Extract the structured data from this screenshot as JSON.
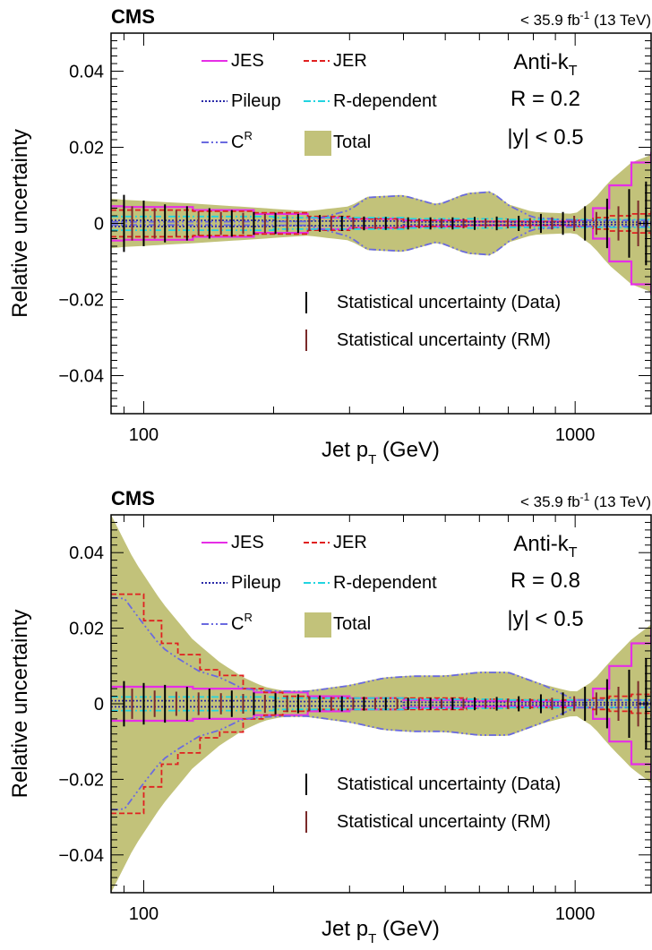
{
  "chart_data": [
    {
      "type": "line",
      "experiment": "CMS",
      "luminosity": "< 35.9 fb⁻¹ (13 TeV)",
      "lumi_parts": {
        "prefix": "< 35.9 fb",
        "sup": "-1",
        "suffix": " (13 TeV)"
      },
      "xlabel": "Jet p",
      "xlabel_sub": "T",
      "xlabel_suffix": " (GeV)",
      "ylabel": "Relative uncertainty",
      "xscale": "log",
      "xlim": [
        84,
        1500
      ],
      "ylim": [
        -0.05,
        0.05
      ],
      "xticks": [
        "100",
        "1000"
      ],
      "yticks": [
        "0.04",
        "0.02",
        "0",
        "−0.02",
        "−0.04"
      ],
      "info": {
        "algo": "Anti-k",
        "algo_sub": "T",
        "radius": "R = 0.2",
        "rapidity": "|y| < 0.5"
      },
      "legend": [
        {
          "label": "JES",
          "color": "#e62ee6",
          "style": "solid"
        },
        {
          "label": "JER",
          "color": "#e02020",
          "style": "dashed"
        },
        {
          "label": "Pileup",
          "color": "#2a2aa8",
          "style": "dotted"
        },
        {
          "label": "R-dependent",
          "color": "#22d4e0",
          "style": "dashdot"
        },
        {
          "label": "C",
          "sup": "R",
          "color": "#6a6ae0",
          "style": "dashdotdot"
        },
        {
          "label": "Total",
          "color": "#c2c27a",
          "style": "fill"
        }
      ],
      "stat_legend": [
        {
          "label": "Statistical uncertainty (Data)",
          "color": "#000000"
        },
        {
          "label": "Statistical uncertainty (RM)",
          "color": "#7a2a2a"
        }
      ],
      "envelopes": [
        {
          "name": "Total",
          "x": [
            84,
            90,
            130,
            180,
            240,
            300,
            330,
            400,
            480,
            560,
            640,
            700,
            800,
            1000,
            1100,
            1200,
            1350,
            1500
          ],
          "y": [
            0.0065,
            0.0062,
            0.0052,
            0.0042,
            0.0032,
            0.0045,
            0.007,
            0.0075,
            0.005,
            0.008,
            0.0085,
            0.005,
            0.003,
            0.0025,
            0.006,
            0.011,
            0.016,
            0.018
          ]
        },
        {
          "name": "JES",
          "x": [
            84,
            90,
            130,
            180,
            240,
            300,
            400,
            560,
            700,
            800,
            1000,
            1100,
            1200,
            1350,
            1500
          ],
          "y": [
            0.0045,
            0.0043,
            0.0035,
            0.0025,
            0.0015,
            0.0012,
            0.0008,
            0.0005,
            0.0005,
            0.0005,
            0.0008,
            0.004,
            0.01,
            0.016,
            0.0185
          ]
        },
        {
          "name": "JER",
          "x": [
            84,
            130,
            180,
            240,
            300,
            400,
            560,
            700,
            800,
            1000,
            1100,
            1200,
            1350,
            1500
          ],
          "y": [
            0.0035,
            0.0032,
            0.0028,
            0.0018,
            0.0012,
            0.0008,
            0.0005,
            0.0005,
            0.0005,
            0.0008,
            0.0015,
            0.002,
            0.0025,
            0.003
          ]
        },
        {
          "name": "R-dependent",
          "x": [
            84,
            200,
            400,
            700,
            1000,
            1500
          ],
          "y": [
            0.0018,
            0.0015,
            0.0012,
            0.001,
            0.001,
            0.001
          ]
        },
        {
          "name": "Pileup",
          "x": [
            84,
            200,
            400,
            700,
            1000,
            1500
          ],
          "y": [
            0.0008,
            0.0006,
            0.0004,
            0.0003,
            0.0003,
            0.0003
          ]
        },
        {
          "name": "C^R",
          "x": [
            84,
            240,
            300,
            330,
            400,
            480,
            560,
            640,
            700,
            800,
            1000,
            1500
          ],
          "y": [
            0.0004,
            0.0005,
            0.0035,
            0.0068,
            0.0073,
            0.0048,
            0.0078,
            0.0083,
            0.0048,
            0.0015,
            0.0008,
            0.0008
          ]
        }
      ],
      "stat_errors": {
        "data": {
          "x": [
            90,
            100,
            112,
            126,
            142,
            160,
            180,
            202,
            228,
            256,
            288,
            324,
            364,
            410,
            462,
            520,
            585,
            658,
            740,
            833,
            937,
            1054,
            1186,
            1334,
            1460
          ],
          "y": [
            0.0075,
            0.006,
            0.005,
            0.0045,
            0.004,
            0.0035,
            0.003,
            0.0028,
            0.0025,
            0.0022,
            0.002,
            0.0018,
            0.0017,
            0.0016,
            0.0016,
            0.0016,
            0.0017,
            0.0018,
            0.002,
            0.0025,
            0.003,
            0.0045,
            0.0065,
            0.009,
            0.011
          ]
        },
        "rm": {
          "x": [
            94,
            106,
            119,
            134,
            151,
            170,
            191,
            215,
            242,
            272,
            306,
            344,
            387,
            435,
            490,
            551,
            620,
            698,
            786,
            884,
            995,
            1120,
            1260,
            1400
          ],
          "y": [
            0.0045,
            0.004,
            0.0035,
            0.0032,
            0.003,
            0.0028,
            0.0025,
            0.0022,
            0.002,
            0.0018,
            0.0016,
            0.0015,
            0.0014,
            0.0013,
            0.0013,
            0.0013,
            0.0013,
            0.0013,
            0.0014,
            0.0016,
            0.002,
            0.003,
            0.0045,
            0.006
          ]
        }
      }
    },
    {
      "type": "line",
      "experiment": "CMS",
      "luminosity": "< 35.9 fb⁻¹ (13 TeV)",
      "lumi_parts": {
        "prefix": "< 35.9 fb",
        "sup": "-1",
        "suffix": " (13 TeV)"
      },
      "xlabel": "Jet p",
      "xlabel_sub": "T",
      "xlabel_suffix": " (GeV)",
      "ylabel": "Relative uncertainty",
      "xscale": "log",
      "xlim": [
        84,
        1500
      ],
      "ylim": [
        -0.05,
        0.05
      ],
      "xticks": [
        "100",
        "1000"
      ],
      "yticks": [
        "0.04",
        "0.02",
        "0",
        "−0.02",
        "−0.04"
      ],
      "info": {
        "algo": "Anti-k",
        "algo_sub": "T",
        "radius": "R = 0.8",
        "rapidity": "|y| < 0.5"
      },
      "legend": [
        {
          "label": "JES",
          "color": "#e62ee6",
          "style": "solid"
        },
        {
          "label": "JER",
          "color": "#e02020",
          "style": "dashed"
        },
        {
          "label": "Pileup",
          "color": "#2a2aa8",
          "style": "dotted"
        },
        {
          "label": "R-dependent",
          "color": "#22d4e0",
          "style": "dashdot"
        },
        {
          "label": "C",
          "sup": "R",
          "color": "#6a6ae0",
          "style": "dashdotdot"
        },
        {
          "label": "Total",
          "color": "#c2c27a",
          "style": "fill"
        }
      ],
      "stat_legend": [
        {
          "label": "Statistical uncertainty (Data)",
          "color": "#000000"
        },
        {
          "label": "Statistical uncertainty (RM)",
          "color": "#7a2a2a"
        }
      ],
      "envelopes": [
        {
          "name": "Total",
          "x": [
            84,
            95,
            110,
            130,
            150,
            170,
            190,
            210,
            240,
            300,
            360,
            420,
            500,
            600,
            700,
            850,
            1000,
            1100,
            1200,
            1350,
            1500
          ],
          "y": [
            0.05,
            0.038,
            0.027,
            0.017,
            0.011,
            0.007,
            0.0045,
            0.0035,
            0.0035,
            0.005,
            0.007,
            0.0075,
            0.0075,
            0.0085,
            0.0085,
            0.005,
            0.003,
            0.006,
            0.011,
            0.017,
            0.021
          ]
        },
        {
          "name": "JES",
          "x": [
            84,
            130,
            180,
            240,
            300,
            400,
            560,
            700,
            800,
            1000,
            1100,
            1200,
            1350,
            1500
          ],
          "y": [
            0.0045,
            0.004,
            0.003,
            0.002,
            0.0015,
            0.001,
            0.0007,
            0.0007,
            0.0007,
            0.001,
            0.004,
            0.01,
            0.016,
            0.0195
          ]
        },
        {
          "name": "JER",
          "x": [
            84,
            90,
            100,
            110,
            120,
            135,
            150,
            170,
            190,
            210,
            240,
            300,
            400,
            560,
            700,
            800,
            1000,
            1100,
            1200,
            1350,
            1500
          ],
          "y": [
            0.029,
            0.029,
            0.022,
            0.016,
            0.013,
            0.009,
            0.0075,
            0.004,
            0.003,
            0.002,
            0.0015,
            0.0015,
            0.0015,
            0.0012,
            0.001,
            0.001,
            0.001,
            0.0015,
            0.002,
            0.0025,
            0.003
          ]
        },
        {
          "name": "R-dependent",
          "x": [
            84,
            200,
            400,
            700,
            1000,
            1500
          ],
          "y": [
            0.0018,
            0.0015,
            0.0012,
            0.001,
            0.001,
            0.001
          ]
        },
        {
          "name": "Pileup",
          "x": [
            84,
            200,
            400,
            700,
            1000,
            1500
          ],
          "y": [
            0.0008,
            0.0006,
            0.0004,
            0.0003,
            0.0003,
            0.0003
          ]
        },
        {
          "name": "C^R",
          "x": [
            84,
            90,
            100,
            110,
            120,
            135,
            150,
            170,
            190,
            210,
            240,
            300,
            360,
            420,
            500,
            600,
            700,
            850,
            1000,
            1500
          ],
          "y": [
            0.028,
            0.028,
            0.021,
            0.015,
            0.012,
            0.0085,
            0.007,
            0.004,
            0.0035,
            0.0033,
            0.0033,
            0.0048,
            0.0068,
            0.0073,
            0.0073,
            0.0083,
            0.0083,
            0.0048,
            0.001,
            0.001
          ]
        }
      ],
      "stat_errors": {
        "data": {
          "x": [
            90,
            100,
            112,
            126,
            142,
            160,
            180,
            202,
            228,
            256,
            288,
            324,
            364,
            410,
            462,
            520,
            585,
            658,
            740,
            833,
            937,
            1054,
            1186,
            1334,
            1460
          ],
          "y": [
            0.006,
            0.0055,
            0.005,
            0.0045,
            0.004,
            0.0035,
            0.003,
            0.0028,
            0.0025,
            0.0022,
            0.002,
            0.0018,
            0.0017,
            0.0016,
            0.0016,
            0.0016,
            0.0017,
            0.0018,
            0.002,
            0.0025,
            0.003,
            0.0045,
            0.0065,
            0.009,
            0.012
          ]
        },
        "rm": {
          "x": [
            94,
            106,
            119,
            134,
            151,
            170,
            191,
            215,
            242,
            272,
            306,
            344,
            387,
            435,
            490,
            551,
            620,
            698,
            786,
            884,
            995,
            1120,
            1260,
            1400
          ],
          "y": [
            0.004,
            0.0035,
            0.0032,
            0.003,
            0.0028,
            0.0026,
            0.0024,
            0.0022,
            0.002,
            0.0018,
            0.0016,
            0.0015,
            0.0014,
            0.0013,
            0.0013,
            0.0013,
            0.0013,
            0.0013,
            0.0014,
            0.0016,
            0.002,
            0.003,
            0.0045,
            0.006
          ]
        }
      }
    }
  ]
}
